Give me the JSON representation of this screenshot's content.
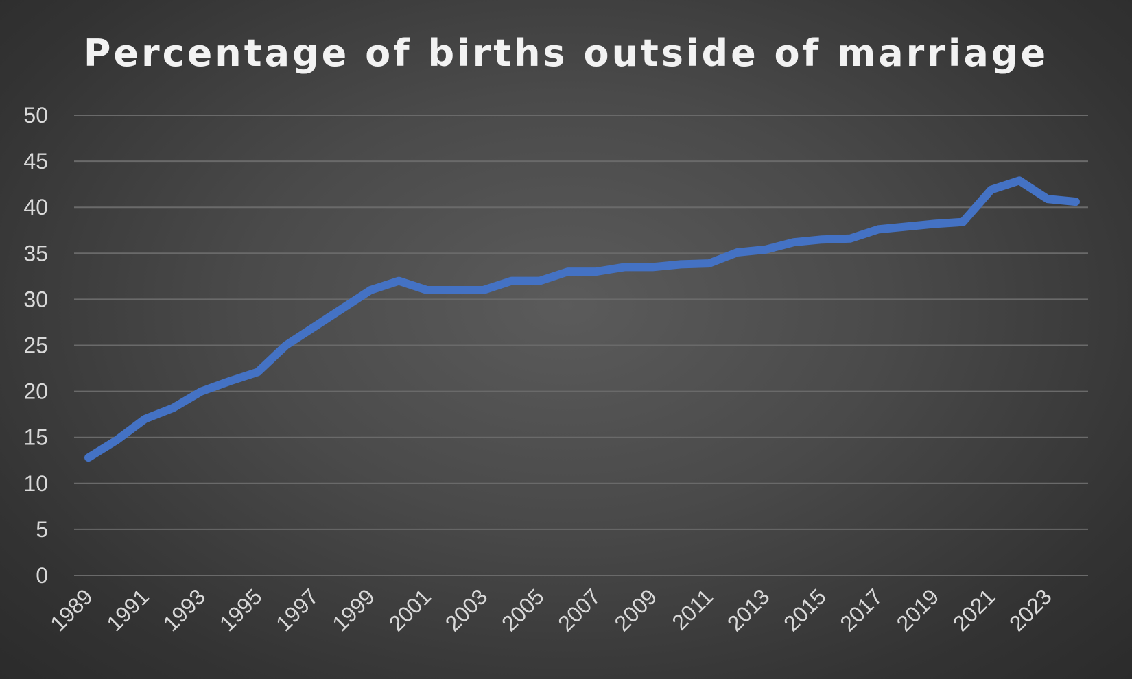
{
  "chart_data": {
    "type": "line",
    "title": "Percentage of births outside of marriage",
    "xlabel": "",
    "ylabel": "",
    "ylim": [
      0,
      50
    ],
    "y_ticks": [
      "0",
      "5",
      "10",
      "15",
      "20",
      "25",
      "30",
      "35",
      "40",
      "45",
      "50"
    ],
    "x": [
      1989,
      1990,
      1991,
      1992,
      1993,
      1994,
      1995,
      1996,
      1997,
      1998,
      1999,
      2000,
      2001,
      2002,
      2003,
      2004,
      2005,
      2006,
      2007,
      2008,
      2009,
      2010,
      2011,
      2012,
      2013,
      2014,
      2015,
      2016,
      2017,
      2018,
      2019,
      2020,
      2021,
      2022,
      2023,
      2024
    ],
    "x_tick_labels": [
      "1989",
      "1991",
      "1993",
      "1995",
      "1997",
      "1999",
      "2001",
      "2003",
      "2005",
      "2007",
      "2009",
      "2011",
      "2013",
      "2015",
      "2017",
      "2019",
      "2021",
      "2023"
    ],
    "grid": true,
    "legend": "none",
    "series": [
      {
        "color": "#4472c4",
        "values": [
          12.8,
          14.7,
          17.0,
          18.2,
          20.0,
          21.1,
          22.1,
          25.0,
          27.0,
          29.0,
          31.0,
          32.0,
          31.0,
          31.0,
          31.0,
          32.0,
          32.0,
          33.0,
          33.0,
          33.5,
          33.5,
          33.8,
          33.9,
          35.1,
          35.4,
          36.2,
          36.5,
          36.6,
          37.6,
          37.9,
          38.2,
          38.4,
          41.9,
          42.9,
          40.9,
          40.6
        ]
      }
    ]
  }
}
